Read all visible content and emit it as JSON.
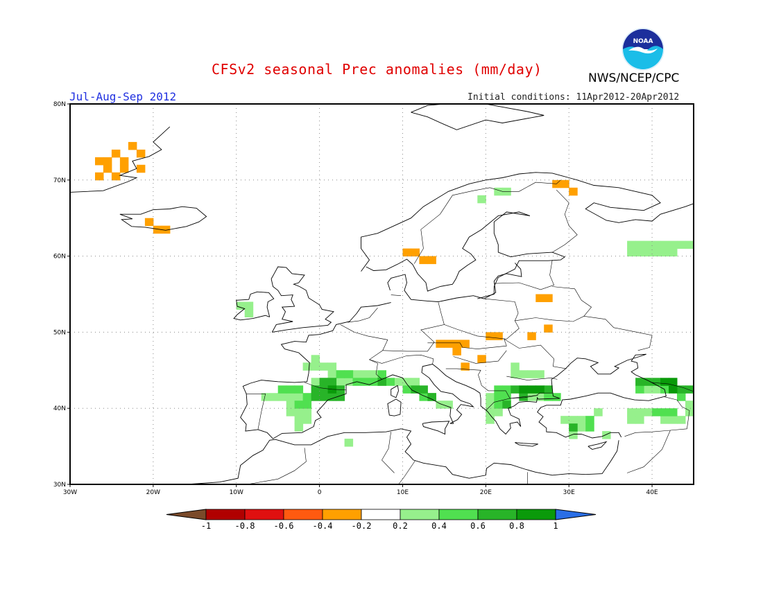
{
  "header": {
    "title": "CFSv2 seasonal Prec anomalies (mm/day)",
    "agency": "NWS/NCEP/CPC",
    "period": "Jul-Aug-Sep 2012",
    "initial_conditions": "Initial conditions: 11Apr2012-20Apr2012",
    "logo_text": "NOAA"
  },
  "map": {
    "lon_range": [
      -30,
      45
    ],
    "lat_range": [
      30,
      80
    ],
    "lat_ticks": [
      {
        "value": 80,
        "label": "80N"
      },
      {
        "value": 70,
        "label": "70N"
      },
      {
        "value": 60,
        "label": "60N"
      },
      {
        "value": 50,
        "label": "50N"
      },
      {
        "value": 40,
        "label": "40N"
      },
      {
        "value": 30,
        "label": "30N"
      }
    ],
    "lon_ticks": [
      {
        "value": -30,
        "label": "30W"
      },
      {
        "value": -20,
        "label": "20W"
      },
      {
        "value": -10,
        "label": "10W"
      },
      {
        "value": 0,
        "label": "0"
      },
      {
        "value": 10,
        "label": "10E"
      },
      {
        "value": 20,
        "label": "20E"
      },
      {
        "value": 30,
        "label": "30E"
      },
      {
        "value": 40,
        "label": "40E"
      }
    ],
    "grid_lines": "dotted",
    "cells": [
      {
        "lon": -23,
        "lat": 74,
        "bin": "-0.4"
      },
      {
        "lon": -25,
        "lat": 73,
        "bin": "-0.4"
      },
      {
        "lon": -22,
        "lat": 73,
        "bin": "-0.4"
      },
      {
        "lon": -27,
        "lat": 72,
        "bin": "-0.4"
      },
      {
        "lon": -26,
        "lat": 72,
        "bin": "-0.4"
      },
      {
        "lon": -24,
        "lat": 72,
        "bin": "-0.4"
      },
      {
        "lon": -26,
        "lat": 71,
        "bin": "-0.4"
      },
      {
        "lon": -24,
        "lat": 71,
        "bin": "-0.4"
      },
      {
        "lon": -22,
        "lat": 71,
        "bin": "-0.4"
      },
      {
        "lon": -27,
        "lat": 70,
        "bin": "-0.4"
      },
      {
        "lon": -25,
        "lat": 70,
        "bin": "-0.4"
      },
      {
        "lon": -21,
        "lat": 64,
        "bin": "-0.4"
      },
      {
        "lon": -20,
        "lat": 63,
        "bin": "-0.4"
      },
      {
        "lon": -19,
        "lat": 63,
        "bin": "-0.4"
      },
      {
        "lon": 10,
        "lat": 60,
        "bin": "-0.4"
      },
      {
        "lon": 11,
        "lat": 60,
        "bin": "-0.4"
      },
      {
        "lon": 12,
        "lat": 59,
        "bin": "-0.4"
      },
      {
        "lon": 13,
        "lat": 59,
        "bin": "-0.4"
      },
      {
        "lon": 28,
        "lat": 69,
        "bin": "-0.4"
      },
      {
        "lon": 29,
        "lat": 69,
        "bin": "-0.4"
      },
      {
        "lon": 30,
        "lat": 68,
        "bin": "-0.4"
      },
      {
        "lon": 26,
        "lat": 54,
        "bin": "-0.4"
      },
      {
        "lon": 27,
        "lat": 54,
        "bin": "-0.4"
      },
      {
        "lon": 27,
        "lat": 50,
        "bin": "-0.4"
      },
      {
        "lon": 25,
        "lat": 49,
        "bin": "-0.4"
      },
      {
        "lon": 20,
        "lat": 49,
        "bin": "-0.4"
      },
      {
        "lon": 21,
        "lat": 49,
        "bin": "-0.4"
      },
      {
        "lon": 14,
        "lat": 48,
        "bin": "-0.4"
      },
      {
        "lon": 15,
        "lat": 48,
        "bin": "-0.4"
      },
      {
        "lon": 16,
        "lat": 48,
        "bin": "-0.4"
      },
      {
        "lon": 17,
        "lat": 48,
        "bin": "-0.4"
      },
      {
        "lon": 16,
        "lat": 47,
        "bin": "-0.4"
      },
      {
        "lon": 19,
        "lat": 46,
        "bin": "-0.4"
      },
      {
        "lon": 17,
        "lat": 45,
        "bin": "-0.4"
      },
      {
        "lon": 45,
        "lat": 63,
        "bin": "0.2"
      },
      {
        "lon": 46,
        "lat": 63,
        "bin": "0.2"
      },
      {
        "lon": 45,
        "lat": 62,
        "bin": "0.2"
      },
      {
        "lon": 46,
        "lat": 62,
        "bin": "0.2"
      },
      {
        "lon": 37,
        "lat": 61,
        "bin": "0.2"
      },
      {
        "lon": 38,
        "lat": 61,
        "bin": "0.2"
      },
      {
        "lon": 39,
        "lat": 61,
        "bin": "0.2"
      },
      {
        "lon": 40,
        "lat": 61,
        "bin": "0.2"
      },
      {
        "lon": 41,
        "lat": 61,
        "bin": "0.2"
      },
      {
        "lon": 42,
        "lat": 61,
        "bin": "0.2"
      },
      {
        "lon": 43,
        "lat": 61,
        "bin": "0.2"
      },
      {
        "lon": 44,
        "lat": 61,
        "bin": "0.2"
      },
      {
        "lon": 45,
        "lat": 61,
        "bin": "0.2"
      },
      {
        "lon": 46,
        "lat": 61,
        "bin": "0.2"
      },
      {
        "lon": 37,
        "lat": 60,
        "bin": "0.2"
      },
      {
        "lon": 38,
        "lat": 60,
        "bin": "0.2"
      },
      {
        "lon": 39,
        "lat": 60,
        "bin": "0.2"
      },
      {
        "lon": 40,
        "lat": 60,
        "bin": "0.2"
      },
      {
        "lon": 41,
        "lat": 60,
        "bin": "0.2"
      },
      {
        "lon": 42,
        "lat": 60,
        "bin": "0.2"
      },
      {
        "lon": 21,
        "lat": 68,
        "bin": "0.2"
      },
      {
        "lon": 22,
        "lat": 68,
        "bin": "0.2"
      },
      {
        "lon": 19,
        "lat": 67,
        "bin": "0.2"
      },
      {
        "lon": -10,
        "lat": 53,
        "bin": "0.2"
      },
      {
        "lon": -9,
        "lat": 53,
        "bin": "0.2"
      },
      {
        "lon": -9,
        "lat": 52,
        "bin": "0.2"
      },
      {
        "lon": -1,
        "lat": 46,
        "bin": "0.2"
      },
      {
        "lon": -2,
        "lat": 45,
        "bin": "0.2"
      },
      {
        "lon": -1,
        "lat": 45,
        "bin": "0.2"
      },
      {
        "lon": 0,
        "lat": 45,
        "bin": "0.2"
      },
      {
        "lon": 1,
        "lat": 45,
        "bin": "0.2"
      },
      {
        "lon": 1,
        "lat": 44,
        "bin": "0.2"
      },
      {
        "lon": 2,
        "lat": 44,
        "bin": "0.2"
      },
      {
        "lon": 3,
        "lat": 44,
        "bin": "0.2"
      },
      {
        "lon": 4,
        "lat": 44,
        "bin": "0.2"
      },
      {
        "lon": 5,
        "lat": 44,
        "bin": "0.2"
      },
      {
        "lon": 6,
        "lat": 44,
        "bin": "0.2"
      },
      {
        "lon": -1,
        "lat": 43,
        "bin": "0.2"
      },
      {
        "lon": 0,
        "lat": 43,
        "bin": "0.2"
      },
      {
        "lon": 1,
        "lat": 43,
        "bin": "0.2"
      },
      {
        "lon": 2,
        "lat": 43,
        "bin": "0.2"
      },
      {
        "lon": 3,
        "lat": 43,
        "bin": "0.2"
      },
      {
        "lon": 7,
        "lat": 43,
        "bin": "0.2"
      },
      {
        "lon": 9,
        "lat": 43,
        "bin": "0.2"
      },
      {
        "lon": 10,
        "lat": 43,
        "bin": "0.2"
      },
      {
        "lon": 11,
        "lat": 43,
        "bin": "0.2"
      },
      {
        "lon": -7,
        "lat": 41,
        "bin": "0.2"
      },
      {
        "lon": -6,
        "lat": 41,
        "bin": "0.2"
      },
      {
        "lon": -5,
        "lat": 41,
        "bin": "0.2"
      },
      {
        "lon": -4,
        "lat": 41,
        "bin": "0.2"
      },
      {
        "lon": -3,
        "lat": 41,
        "bin": "0.2"
      },
      {
        "lon": -4,
        "lat": 40,
        "bin": "0.2"
      },
      {
        "lon": -3,
        "lat": 40,
        "bin": "0.2"
      },
      {
        "lon": -4,
        "lat": 39,
        "bin": "0.2"
      },
      {
        "lon": -3,
        "lat": 39,
        "bin": "0.2"
      },
      {
        "lon": -2,
        "lat": 39,
        "bin": "0.2"
      },
      {
        "lon": -3,
        "lat": 38,
        "bin": "0.2"
      },
      {
        "lon": -2,
        "lat": 38,
        "bin": "0.2"
      },
      {
        "lon": -3,
        "lat": 37,
        "bin": "0.2"
      },
      {
        "lon": 3,
        "lat": 35,
        "bin": "0.2"
      },
      {
        "lon": 14,
        "lat": 40,
        "bin": "0.2"
      },
      {
        "lon": 15,
        "lat": 40,
        "bin": "0.2"
      },
      {
        "lon": 23,
        "lat": 45,
        "bin": "0.2"
      },
      {
        "lon": 23,
        "lat": 44,
        "bin": "0.2"
      },
      {
        "lon": 24,
        "lat": 44,
        "bin": "0.2"
      },
      {
        "lon": 25,
        "lat": 44,
        "bin": "0.2"
      },
      {
        "lon": 26,
        "lat": 44,
        "bin": "0.2"
      },
      {
        "lon": 20,
        "lat": 41,
        "bin": "0.2"
      },
      {
        "lon": 20,
        "lat": 40,
        "bin": "0.2"
      },
      {
        "lon": 25,
        "lat": 41,
        "bin": "0.2"
      },
      {
        "lon": 26,
        "lat": 41,
        "bin": "0.2"
      },
      {
        "lon": 20,
        "lat": 39,
        "bin": "0.2"
      },
      {
        "lon": 21,
        "lat": 39,
        "bin": "0.2"
      },
      {
        "lon": 20,
        "lat": 38,
        "bin": "0.2"
      },
      {
        "lon": 29,
        "lat": 38,
        "bin": "0.2"
      },
      {
        "lon": 30,
        "lat": 38,
        "bin": "0.2"
      },
      {
        "lon": 31,
        "lat": 38,
        "bin": "0.2"
      },
      {
        "lon": 30,
        "lat": 37,
        "bin": "0.2"
      },
      {
        "lon": 31,
        "lat": 37,
        "bin": "0.2"
      },
      {
        "lon": 30,
        "lat": 36,
        "bin": "0.2"
      },
      {
        "lon": 33,
        "lat": 39,
        "bin": "0.2"
      },
      {
        "lon": 34,
        "lat": 36,
        "bin": "0.2"
      },
      {
        "lon": 39,
        "lat": 42,
        "bin": "0.2"
      },
      {
        "lon": 40,
        "lat": 42,
        "bin": "0.2"
      },
      {
        "lon": 44,
        "lat": 40,
        "bin": "0.2"
      },
      {
        "lon": 45,
        "lat": 40,
        "bin": "0.2"
      },
      {
        "lon": 37,
        "lat": 39,
        "bin": "0.2"
      },
      {
        "lon": 38,
        "lat": 39,
        "bin": "0.2"
      },
      {
        "lon": 39,
        "lat": 39,
        "bin": "0.2"
      },
      {
        "lon": 44,
        "lat": 39,
        "bin": "0.2"
      },
      {
        "lon": 37,
        "lat": 38,
        "bin": "0.2"
      },
      {
        "lon": 38,
        "lat": 38,
        "bin": "0.2"
      },
      {
        "lon": 41,
        "lat": 38,
        "bin": "0.2"
      },
      {
        "lon": 42,
        "lat": 38,
        "bin": "0.2"
      },
      {
        "lon": 43,
        "lat": 38,
        "bin": "0.2"
      },
      {
        "lon": -5,
        "lat": 42,
        "bin": "0.4"
      },
      {
        "lon": -4,
        "lat": 42,
        "bin": "0.4"
      },
      {
        "lon": -3,
        "lat": 42,
        "bin": "0.4"
      },
      {
        "lon": -2,
        "lat": 41,
        "bin": "0.4"
      },
      {
        "lon": -3,
        "lat": 40,
        "bin": "0.4"
      },
      {
        "lon": -2,
        "lat": 40,
        "bin": "0.4"
      },
      {
        "lon": 2,
        "lat": 44,
        "bin": "0.4"
      },
      {
        "lon": 3,
        "lat": 44,
        "bin": "0.4"
      },
      {
        "lon": 7,
        "lat": 44,
        "bin": "0.4"
      },
      {
        "lon": 4,
        "lat": 43,
        "bin": "0.4"
      },
      {
        "lon": 5,
        "lat": 43,
        "bin": "0.4"
      },
      {
        "lon": 6,
        "lat": 43,
        "bin": "0.4"
      },
      {
        "lon": 8,
        "lat": 43,
        "bin": "0.4"
      },
      {
        "lon": 10,
        "lat": 42,
        "bin": "0.4"
      },
      {
        "lon": 12,
        "lat": 41,
        "bin": "0.4"
      },
      {
        "lon": 13,
        "lat": 41,
        "bin": "0.4"
      },
      {
        "lon": 21,
        "lat": 41,
        "bin": "0.4"
      },
      {
        "lon": 22,
        "lat": 41,
        "bin": "0.4"
      },
      {
        "lon": 21,
        "lat": 40,
        "bin": "0.4"
      },
      {
        "lon": 27,
        "lat": 41,
        "bin": "0.4"
      },
      {
        "lon": 28,
        "lat": 41,
        "bin": "0.4"
      },
      {
        "lon": 21,
        "lat": 42,
        "bin": "0.4"
      },
      {
        "lon": 22,
        "lat": 42,
        "bin": "0.4"
      },
      {
        "lon": 32,
        "lat": 38,
        "bin": "0.4"
      },
      {
        "lon": 32,
        "lat": 37,
        "bin": "0.4"
      },
      {
        "lon": 38,
        "lat": 42,
        "bin": "0.4"
      },
      {
        "lon": 41,
        "lat": 42,
        "bin": "0.4"
      },
      {
        "lon": 43,
        "lat": 41,
        "bin": "0.4"
      },
      {
        "lon": 45,
        "lat": 41,
        "bin": "0.4"
      },
      {
        "lon": 40,
        "lat": 39,
        "bin": "0.4"
      },
      {
        "lon": 41,
        "lat": 39,
        "bin": "0.4"
      },
      {
        "lon": 42,
        "lat": 39,
        "bin": "0.4"
      },
      {
        "lon": 0,
        "lat": 43,
        "bin": "0.6"
      },
      {
        "lon": 1,
        "lat": 43,
        "bin": "0.6"
      },
      {
        "lon": -1,
        "lat": 42,
        "bin": "0.6"
      },
      {
        "lon": 0,
        "lat": 42,
        "bin": "0.6"
      },
      {
        "lon": 2,
        "lat": 42,
        "bin": "0.6"
      },
      {
        "lon": -1,
        "lat": 41,
        "bin": "0.6"
      },
      {
        "lon": 0,
        "lat": 41,
        "bin": "0.6"
      },
      {
        "lon": 1,
        "lat": 41,
        "bin": "0.6"
      },
      {
        "lon": 2,
        "lat": 41,
        "bin": "0.6"
      },
      {
        "lon": 7,
        "lat": 43,
        "bin": "0.6"
      },
      {
        "lon": 11,
        "lat": 42,
        "bin": "0.6"
      },
      {
        "lon": 12,
        "lat": 42,
        "bin": "0.6"
      },
      {
        "lon": 13,
        "lat": 41,
        "bin": "0.6"
      },
      {
        "lon": 23,
        "lat": 42,
        "bin": "0.6"
      },
      {
        "lon": 27,
        "lat": 42,
        "bin": "0.6"
      },
      {
        "lon": 22,
        "lat": 40,
        "bin": "0.6"
      },
      {
        "lon": 24,
        "lat": 41,
        "bin": "0.6"
      },
      {
        "lon": 30,
        "lat": 37,
        "bin": "0.6"
      },
      {
        "lon": 38,
        "lat": 43,
        "bin": "0.6"
      },
      {
        "lon": 39,
        "lat": 43,
        "bin": "0.6"
      },
      {
        "lon": 40,
        "lat": 43,
        "bin": "0.6"
      },
      {
        "lon": 43,
        "lat": 42,
        "bin": "0.6"
      },
      {
        "lon": 44,
        "lat": 42,
        "bin": "0.6"
      },
      {
        "lon": 1,
        "lat": 42,
        "bin": "0.8"
      },
      {
        "lon": 24,
        "lat": 42,
        "bin": "0.8"
      },
      {
        "lon": 25,
        "lat": 42,
        "bin": "0.8"
      },
      {
        "lon": 26,
        "lat": 42,
        "bin": "0.8"
      },
      {
        "lon": 41,
        "lat": 43,
        "bin": "0.8"
      },
      {
        "lon": 42,
        "lat": 43,
        "bin": "0.8"
      },
      {
        "lon": 42,
        "lat": 42,
        "bin": "0.8"
      },
      {
        "lon": 45,
        "lat": 42,
        "bin": "0.8"
      }
    ]
  },
  "legend": {
    "bins": [
      {
        "key": "lt-1",
        "color": "#7a4a2a"
      },
      {
        "key": "-1",
        "color": "#b00000"
      },
      {
        "key": "-0.8",
        "color": "#e01010"
      },
      {
        "key": "-0.6",
        "color": "#ff5a10"
      },
      {
        "key": "-0.4",
        "color": "#ffa000"
      },
      {
        "key": "-0.2",
        "color": "#ffffff"
      },
      {
        "key": "0.2",
        "color": "#96f08c"
      },
      {
        "key": "0.4",
        "color": "#50e050"
      },
      {
        "key": "0.6",
        "color": "#28b428"
      },
      {
        "key": "0.8",
        "color": "#0a9a0a"
      },
      {
        "key": "gt1",
        "color": "#2a6ee6"
      }
    ],
    "labels": [
      "-1",
      "-0.8",
      "-0.6",
      "-0.4",
      "-0.2",
      "0.2",
      "0.4",
      "0.6",
      "0.8",
      "1"
    ]
  }
}
